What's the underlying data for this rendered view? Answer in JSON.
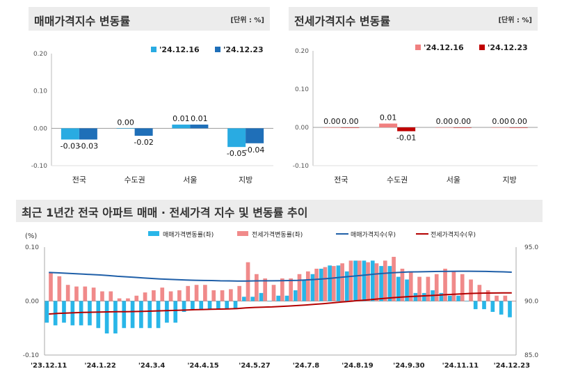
{
  "panels": {
    "sale": {
      "title": "매매가격지수 변동률",
      "unit": "[단위 : %]"
    },
    "jeonse": {
      "title": "전세가격지수 변동률",
      "unit": "[단위 : %]"
    },
    "trend": {
      "title": "최근 1년간 전국 아파트 매매 · 전세가격 지수 및 변동률 추이"
    }
  },
  "chart_data": [
    {
      "type": "bar",
      "title": "매매가격지수 변동률",
      "unit": "[단위 : %]",
      "categories": [
        "전국",
        "수도권",
        "서울",
        "지방"
      ],
      "series": [
        {
          "name": "'24.12.16",
          "values": [
            -0.03,
            0.0,
            0.01,
            -0.05
          ],
          "labels": [
            "-0.03",
            "0.00",
            "0.01",
            "-0.05"
          ],
          "color": "#29abe2"
        },
        {
          "name": "'24.12.23",
          "values": [
            -0.03,
            -0.02,
            0.01,
            -0.04
          ],
          "labels": [
            "-0.03",
            "-0.02",
            "0.01",
            "-0.04"
          ],
          "color": "#1f6fb8"
        }
      ],
      "yticks": [
        "0.20",
        "0.10",
        "0.00",
        "-0.10"
      ],
      "ylim": [
        -0.1,
        0.2
      ],
      "legend": "top-right"
    },
    {
      "type": "bar",
      "title": "전세가격지수 변동률",
      "unit": "[단위 : %]",
      "categories": [
        "전국",
        "수도권",
        "서울",
        "지방"
      ],
      "series": [
        {
          "name": "'24.12.16",
          "values": [
            0.0,
            0.01,
            0.0,
            0.0
          ],
          "labels": [
            "0.00",
            "0.01",
            "0.00",
            "0.00"
          ],
          "color": "#f08080"
        },
        {
          "name": "'24.12.23",
          "values": [
            0.0,
            -0.01,
            0.0,
            0.0
          ],
          "labels": [
            "0.00",
            "-0.01",
            "0.00",
            "0.00"
          ],
          "color": "#c00000"
        }
      ],
      "yticks": [
        "0.20",
        "0.10",
        "0.00",
        "-0.10"
      ],
      "ylim": [
        -0.1,
        0.2
      ],
      "legend": "top-right"
    },
    {
      "type": "bar+line",
      "title": "최근 1년간 전국 아파트 매매 · 전세가격 지수 및 변동률 추이",
      "y_left_label": "(%)",
      "y_left_ticks": [
        "0.10",
        "0.00",
        "-0.10"
      ],
      "y_left_lim": [
        -0.1,
        0.1
      ],
      "y_right_ticks": [
        "95.0",
        "90.0",
        "85.0"
      ],
      "y_right_lim": [
        85.0,
        95.0
      ],
      "x_tick_labels": [
        "'23.12.11",
        "'24.1.22",
        "'24.3.4",
        "'24.4.15",
        "'24.5.27",
        "'24.7.8",
        "'24.8.19",
        "'24.9.30",
        "'24.11.11",
        "'24.12.23"
      ],
      "x_tick_index": [
        0,
        6,
        12,
        18,
        24,
        30,
        36,
        42,
        48,
        54
      ],
      "legend": "top",
      "series": [
        {
          "name": "매매가격변동률(좌)",
          "kind": "bar",
          "axis": "left",
          "color": "#29b6e8",
          "values": [
            -0.04,
            -0.045,
            -0.04,
            -0.045,
            -0.045,
            -0.045,
            -0.05,
            -0.06,
            -0.06,
            -0.05,
            -0.05,
            -0.05,
            -0.05,
            -0.05,
            -0.04,
            -0.04,
            -0.02,
            -0.015,
            -0.015,
            -0.015,
            -0.015,
            -0.015,
            -0.015,
            0.008,
            0.008,
            0.015,
            0.0,
            0.01,
            0.01,
            0.02,
            0.04,
            0.05,
            0.06,
            0.066,
            0.066,
            0.055,
            0.075,
            0.075,
            0.075,
            0.065,
            0.065,
            0.045,
            0.04,
            0.015,
            0.015,
            0.02,
            0.015,
            0.01,
            0.01,
            0.0,
            -0.015,
            -0.015,
            -0.02,
            -0.025,
            -0.03
          ]
        },
        {
          "name": "전세가격변동률(좌)",
          "kind": "bar",
          "axis": "left",
          "color": "#f08a8a",
          "values": [
            0.053,
            0.046,
            0.03,
            0.027,
            0.027,
            0.025,
            0.018,
            0.018,
            0.005,
            0.005,
            0.01,
            0.016,
            0.02,
            0.025,
            0.018,
            0.02,
            0.028,
            0.03,
            0.03,
            0.02,
            0.02,
            0.022,
            0.028,
            0.072,
            0.05,
            0.042,
            0.03,
            0.042,
            0.042,
            0.05,
            0.055,
            0.06,
            0.063,
            0.065,
            0.07,
            0.075,
            0.075,
            0.072,
            0.07,
            0.075,
            0.082,
            0.06,
            0.055,
            0.045,
            0.045,
            0.05,
            0.06,
            0.055,
            0.05,
            0.04,
            0.03,
            0.02,
            0.01,
            0.01,
            0.0
          ]
        },
        {
          "name": "매매가격지수(우)",
          "kind": "line",
          "axis": "right",
          "color": "#1f5fa8",
          "values": [
            92.65,
            92.62,
            92.58,
            92.54,
            92.5,
            92.46,
            92.42,
            92.36,
            92.3,
            92.25,
            92.2,
            92.15,
            92.1,
            92.05,
            92.02,
            91.98,
            91.95,
            91.93,
            91.91,
            91.9,
            91.88,
            91.87,
            91.86,
            91.86,
            91.87,
            91.88,
            91.88,
            91.89,
            91.9,
            91.92,
            91.96,
            92.0,
            92.06,
            92.12,
            92.2,
            92.27,
            92.35,
            92.42,
            92.5,
            92.56,
            92.62,
            92.66,
            92.7,
            92.71,
            92.72,
            92.74,
            92.75,
            92.76,
            92.77,
            92.77,
            92.76,
            92.75,
            92.73,
            92.71,
            92.68
          ]
        },
        {
          "name": "전세가격지수(우)",
          "kind": "line",
          "axis": "right",
          "color": "#b30000",
          "values": [
            88.8,
            88.85,
            88.89,
            88.92,
            88.95,
            88.97,
            88.99,
            89.0,
            89.01,
            89.02,
            89.03,
            89.05,
            89.07,
            89.1,
            89.12,
            89.14,
            89.17,
            89.2,
            89.22,
            89.24,
            89.26,
            89.28,
            89.31,
            89.37,
            89.41,
            89.44,
            89.46,
            89.5,
            89.54,
            89.59,
            89.64,
            89.7,
            89.76,
            89.83,
            89.9,
            89.97,
            90.04,
            90.1,
            90.17,
            90.24,
            90.31,
            90.36,
            90.41,
            90.45,
            90.49,
            90.53,
            90.58,
            90.62,
            90.66,
            90.7,
            90.72,
            90.74,
            90.75,
            90.76,
            90.76
          ]
        }
      ]
    }
  ]
}
